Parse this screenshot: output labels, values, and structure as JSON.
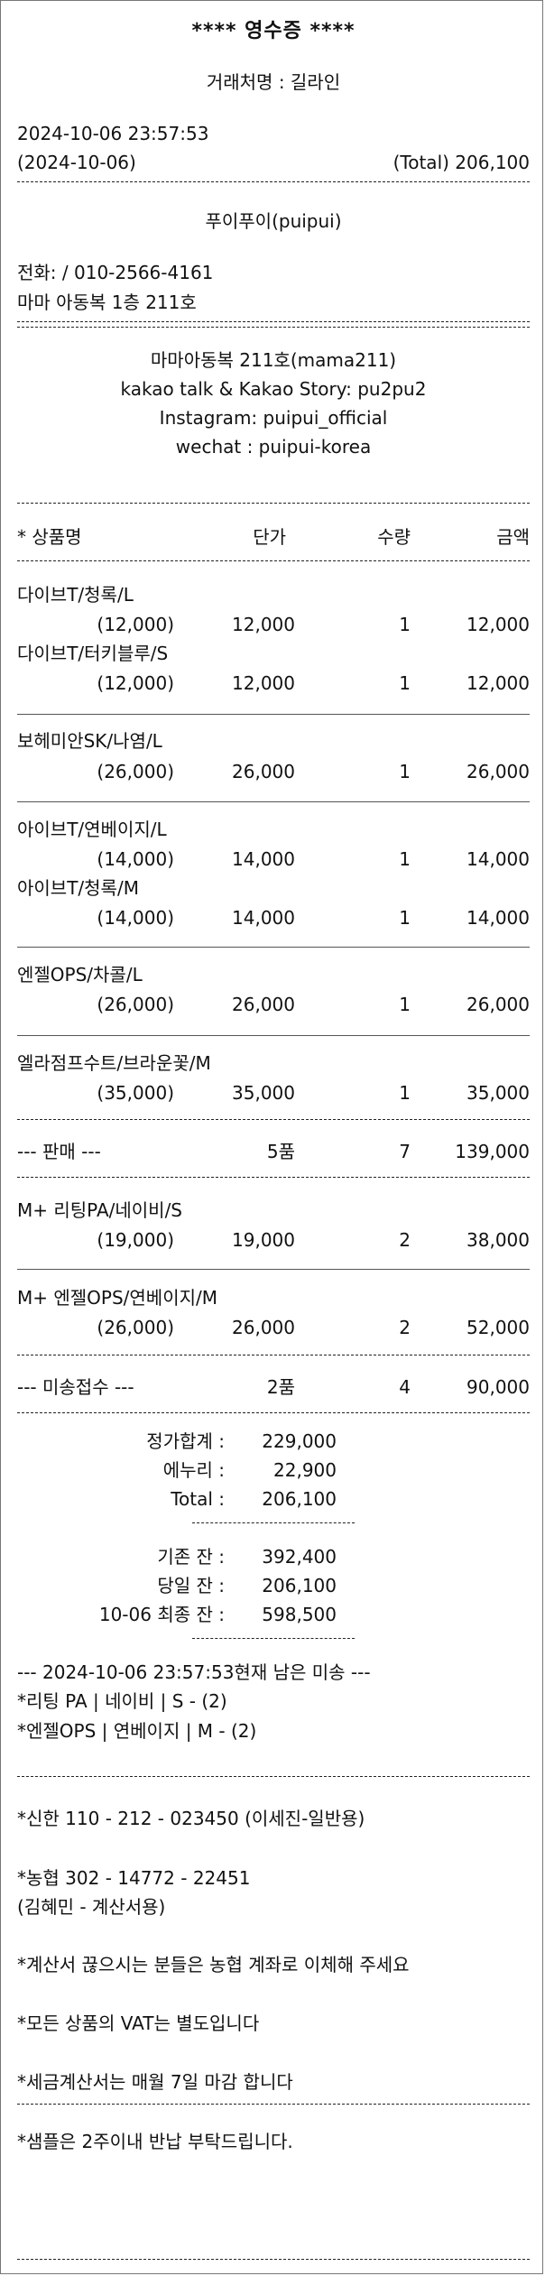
{
  "header": {
    "title": "****  영수증  ****",
    "client": "거래처명 : 길라인",
    "datetime": "2024-10-06 23:57:53",
    "date_paren": "(2024-10-06)",
    "total": "(Total) 206,100"
  },
  "shop": {
    "name": "푸이푸이(puipui)",
    "phone": "전화:  / 010-2566-4161",
    "address": "마마 아동복 1층 211호",
    "info": [
      "마마아동복 211호(mama211)",
      "kakao talk & Kakao Story: pu2pu2",
      "Instagram: puipui_official",
      "wechat : puipui-korea"
    ]
  },
  "columns": {
    "name": "*  상품명",
    "price": "단가",
    "qty": "수량",
    "amount": "금액"
  },
  "groups": [
    {
      "items": [
        {
          "name": "다이브T/청록/L",
          "orig": "(12,000)",
          "price": "12,000",
          "qty": "1",
          "amount": "12,000"
        },
        {
          "name": "다이브T/터키블루/S",
          "orig": "(12,000)",
          "price": "12,000",
          "qty": "1",
          "amount": "12,000"
        }
      ]
    },
    {
      "items": [
        {
          "name": "보헤미안SK/나염/L",
          "orig": "(26,000)",
          "price": "26,000",
          "qty": "1",
          "amount": "26,000"
        }
      ]
    },
    {
      "items": [
        {
          "name": "아이브T/연베이지/L",
          "orig": "(14,000)",
          "price": "14,000",
          "qty": "1",
          "amount": "14,000"
        },
        {
          "name": "아이브T/청록/M",
          "orig": "(14,000)",
          "price": "14,000",
          "qty": "1",
          "amount": "14,000"
        }
      ]
    },
    {
      "items": [
        {
          "name": "엔젤OPS/차콜/L",
          "orig": "(26,000)",
          "price": "26,000",
          "qty": "1",
          "amount": "26,000"
        }
      ]
    },
    {
      "items": [
        {
          "name": "엘라점프수트/브라운꽃/M",
          "orig": "(35,000)",
          "price": "35,000",
          "qty": "1",
          "amount": "35,000"
        }
      ]
    }
  ],
  "sale_summary": {
    "label": "--- 판매 ---",
    "count": "5품",
    "qty": "7",
    "amount": "139,000"
  },
  "unsent_groups": [
    {
      "items": [
        {
          "name": "M+ 리팅PA/네이비/S",
          "orig": "(19,000)",
          "price": "19,000",
          "qty": "2",
          "amount": "38,000"
        }
      ]
    },
    {
      "items": [
        {
          "name": "M+ 엔젤OPS/연베이지/M",
          "orig": "(26,000)",
          "price": "26,000",
          "qty": "2",
          "amount": "52,000"
        }
      ]
    }
  ],
  "unsent_summary": {
    "label": "--- 미송접수 ---",
    "count": "2품",
    "qty": "4",
    "amount": "90,000"
  },
  "totals": [
    {
      "label": "정가합계 :",
      "value": "229,000"
    },
    {
      "label": "에누리 :",
      "value": "22,900"
    },
    {
      "label": "Total :",
      "value": "206,100"
    }
  ],
  "balances": [
    {
      "label": "기존 잔 :",
      "value": "392,400"
    },
    {
      "label": "당일 잔 :",
      "value": "206,100"
    },
    {
      "label": "10-06 최종 잔 :",
      "value": "598,500"
    }
  ],
  "remaining": {
    "header": "--- 2024-10-06 23:57:53현재 남은 미송 ---",
    "items": [
      "*리팅 PA | 네이비 | S - (2)",
      "*엔젤OPS | 연베이지 | M - (2)"
    ]
  },
  "notes": {
    "bank1": "*신한 110 - 212 - 023450 (이세진-일반용)",
    "bank2": "*농협 302 - 14772 - 22451",
    "bank2_owner": "(김혜민 - 계산서용)",
    "note1": "*계산서 끊으시는 분들은 농협 계좌로 이체해 주세요",
    "note2": "*모든 상품의 VAT는 별도입니다",
    "note3": "*세금계산서는 매월 7일 마감 합니다",
    "note4": "*샘플은 2주이내 반납 부탁드립니다."
  }
}
